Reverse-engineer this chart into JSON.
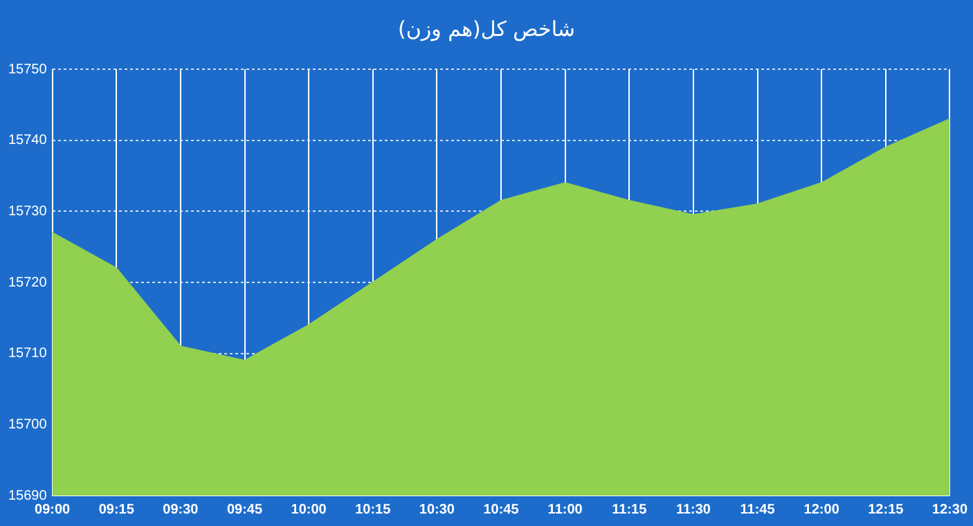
{
  "chart_data": {
    "type": "area",
    "title": "شاخص کل(هم وزن)",
    "categories": [
      "09:00",
      "09:15",
      "09:30",
      "09:45",
      "10:00",
      "10:15",
      "10:30",
      "10:45",
      "11:00",
      "11:15",
      "11:30",
      "11:45",
      "12:00",
      "12:15",
      "12:30"
    ],
    "series": [
      {
        "color": "#92d050",
        "values": [
          15727,
          15722,
          15711,
          15709,
          15714,
          15720,
          15726,
          15731.5,
          15734,
          15731.5,
          15729.5,
          15731,
          15734,
          15739,
          15743
        ]
      }
    ],
    "ylim": [
      15690,
      15750
    ],
    "yticks": [
      15690,
      15700,
      15710,
      15720,
      15730,
      15740,
      15750
    ],
    "grid": true,
    "legend": false
  }
}
